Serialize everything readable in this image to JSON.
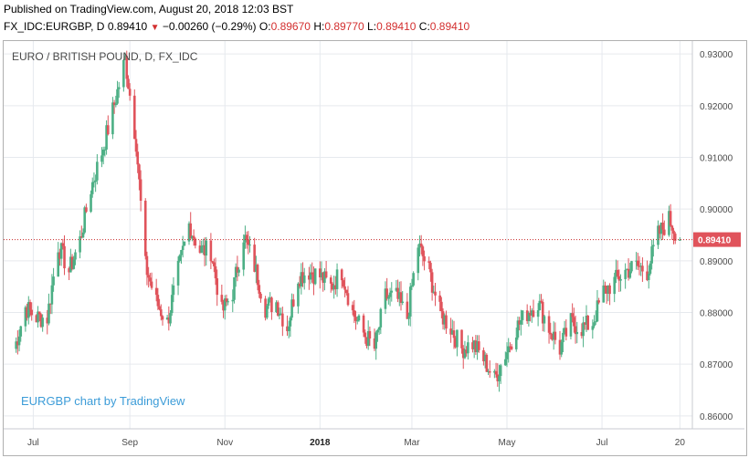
{
  "header": {
    "published": "Published on TradingView.com, August 20, 2018 12:03 BST",
    "symbol_line": "FX_IDC:EURGBP, D",
    "last": "0.89410",
    "change": "−0.00260 (−0.29%)",
    "open_label": "O:",
    "open_value": "0.89670",
    "high_label": "H:",
    "high_value": "0.89770",
    "low_label": "L:",
    "low_value": "0.89410",
    "close_label": "C:",
    "close_value": "0.89410",
    "arrow_icon": "down-triangle-icon"
  },
  "chart_title": "EURO / BRITISH POUND, D, FX_IDC",
  "watermark": "EURGBP chart by TradingView",
  "colors": {
    "up": "#4caf85",
    "down": "#e0535b",
    "grid": "#e6e9ee",
    "last_line": "#c62828",
    "last_bg": "#e0535b",
    "axis_text": "#4a4a4a",
    "watermark": "#3c9cd8"
  },
  "chart_data": {
    "type": "candlestick",
    "title": "EURO / BRITISH POUND, D, FX_IDC",
    "ylim": [
      0.8575,
      0.9325
    ],
    "y_ticks": [
      "0.93000",
      "0.92000",
      "0.91000",
      "0.90000",
      "0.89000",
      "0.88000",
      "0.87000",
      "0.86000"
    ],
    "x_ticks": [
      "Jul",
      "Sep",
      "Nov",
      "2018",
      "Mar",
      "May",
      "Jul",
      "20"
    ],
    "x_tick_bold": [
      false,
      false,
      false,
      true,
      false,
      false,
      false,
      false
    ],
    "last_price": "0.89410",
    "grid": true,
    "anchors": [
      [
        "2017-06-19",
        0.873
      ],
      [
        "2017-06-26",
        0.881
      ],
      [
        "2017-07-03",
        0.879
      ],
      [
        "2017-07-10",
        0.879
      ],
      [
        "2017-07-17",
        0.893
      ],
      [
        "2017-07-24",
        0.888
      ],
      [
        "2017-07-31",
        0.894
      ],
      [
        "2017-08-07",
        0.904
      ],
      [
        "2017-08-14",
        0.911
      ],
      [
        "2017-08-21",
        0.919
      ],
      [
        "2017-08-29",
        0.929
      ],
      [
        "2017-09-05",
        0.913
      ],
      [
        "2017-09-11",
        0.889
      ],
      [
        "2017-09-18",
        0.882
      ],
      [
        "2017-09-25",
        0.878
      ],
      [
        "2017-10-02",
        0.888
      ],
      [
        "2017-10-09",
        0.897
      ],
      [
        "2017-10-16",
        0.892
      ],
      [
        "2017-10-23",
        0.892
      ],
      [
        "2017-10-30",
        0.88
      ],
      [
        "2017-11-06",
        0.884
      ],
      [
        "2017-11-13",
        0.895
      ],
      [
        "2017-11-20",
        0.889
      ],
      [
        "2017-11-27",
        0.881
      ],
      [
        "2017-12-04",
        0.882
      ],
      [
        "2017-12-11",
        0.877
      ],
      [
        "2017-12-18",
        0.887
      ],
      [
        "2017-12-25",
        0.888
      ],
      [
        "2018-01-01",
        0.887
      ],
      [
        "2018-01-08",
        0.885
      ],
      [
        "2018-01-15",
        0.888
      ],
      [
        "2018-01-22",
        0.88
      ],
      [
        "2018-01-29",
        0.876
      ],
      [
        "2018-02-05",
        0.873
      ],
      [
        "2018-02-12",
        0.883
      ],
      [
        "2018-02-19",
        0.883
      ],
      [
        "2018-02-26",
        0.879
      ],
      [
        "2018-03-05",
        0.893
      ],
      [
        "2018-03-12",
        0.888
      ],
      [
        "2018-03-19",
        0.88
      ],
      [
        "2018-03-26",
        0.877
      ],
      [
        "2018-04-02",
        0.873
      ],
      [
        "2018-04-09",
        0.874
      ],
      [
        "2018-04-16",
        0.871
      ],
      [
        "2018-04-23",
        0.867
      ],
      [
        "2018-04-30",
        0.872
      ],
      [
        "2018-05-07",
        0.877
      ],
      [
        "2018-05-14",
        0.88
      ],
      [
        "2018-05-21",
        0.882
      ],
      [
        "2018-05-28",
        0.877
      ],
      [
        "2018-06-04",
        0.873
      ],
      [
        "2018-06-11",
        0.878
      ],
      [
        "2018-06-18",
        0.877
      ],
      [
        "2018-06-25",
        0.878
      ],
      [
        "2018-07-02",
        0.884
      ],
      [
        "2018-07-09",
        0.886
      ],
      [
        "2018-07-16",
        0.888
      ],
      [
        "2018-07-23",
        0.889
      ],
      [
        "2018-07-30",
        0.888
      ],
      [
        "2018-08-06",
        0.895
      ],
      [
        "2018-08-13",
        0.898
      ],
      [
        "2018-08-20",
        0.8941
      ]
    ]
  }
}
